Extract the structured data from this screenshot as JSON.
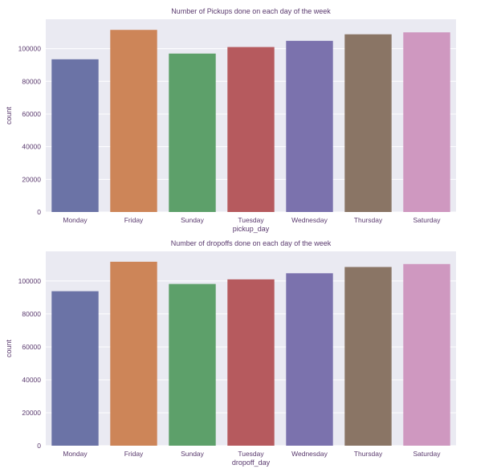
{
  "chart_data": [
    {
      "type": "bar",
      "title": "Number of Pickups done on each day of the week",
      "xlabel": "pickup_day",
      "ylabel": "count",
      "categories": [
        "Monday",
        "Friday",
        "Sunday",
        "Tuesday",
        "Wednesday",
        "Thursday",
        "Saturday"
      ],
      "values": [
        93500,
        111500,
        97000,
        101000,
        104800,
        108800,
        110000
      ],
      "colors": [
        "#6b73a6",
        "#cd8558",
        "#5da06a",
        "#b65a5e",
        "#7b72ad",
        "#8a7565",
        "#cf98c0"
      ],
      "ylim": [
        0,
        118000
      ],
      "yticks": [
        0,
        20000,
        40000,
        60000,
        80000,
        100000
      ],
      "grid": true
    },
    {
      "type": "bar",
      "title": "Number of dropoffs done on each day of the week",
      "xlabel": "dropoff_day",
      "ylabel": "count",
      "categories": [
        "Monday",
        "Friday",
        "Sunday",
        "Tuesday",
        "Wednesday",
        "Thursday",
        "Saturday"
      ],
      "values": [
        93800,
        111700,
        98200,
        101000,
        104700,
        108500,
        110300
      ],
      "colors": [
        "#6b73a6",
        "#cd8558",
        "#5da06a",
        "#b65a5e",
        "#7b72ad",
        "#8a7565",
        "#cf98c0"
      ],
      "ylim": [
        0,
        118000
      ],
      "yticks": [
        0,
        20000,
        40000,
        60000,
        80000,
        100000
      ],
      "grid": true
    }
  ]
}
